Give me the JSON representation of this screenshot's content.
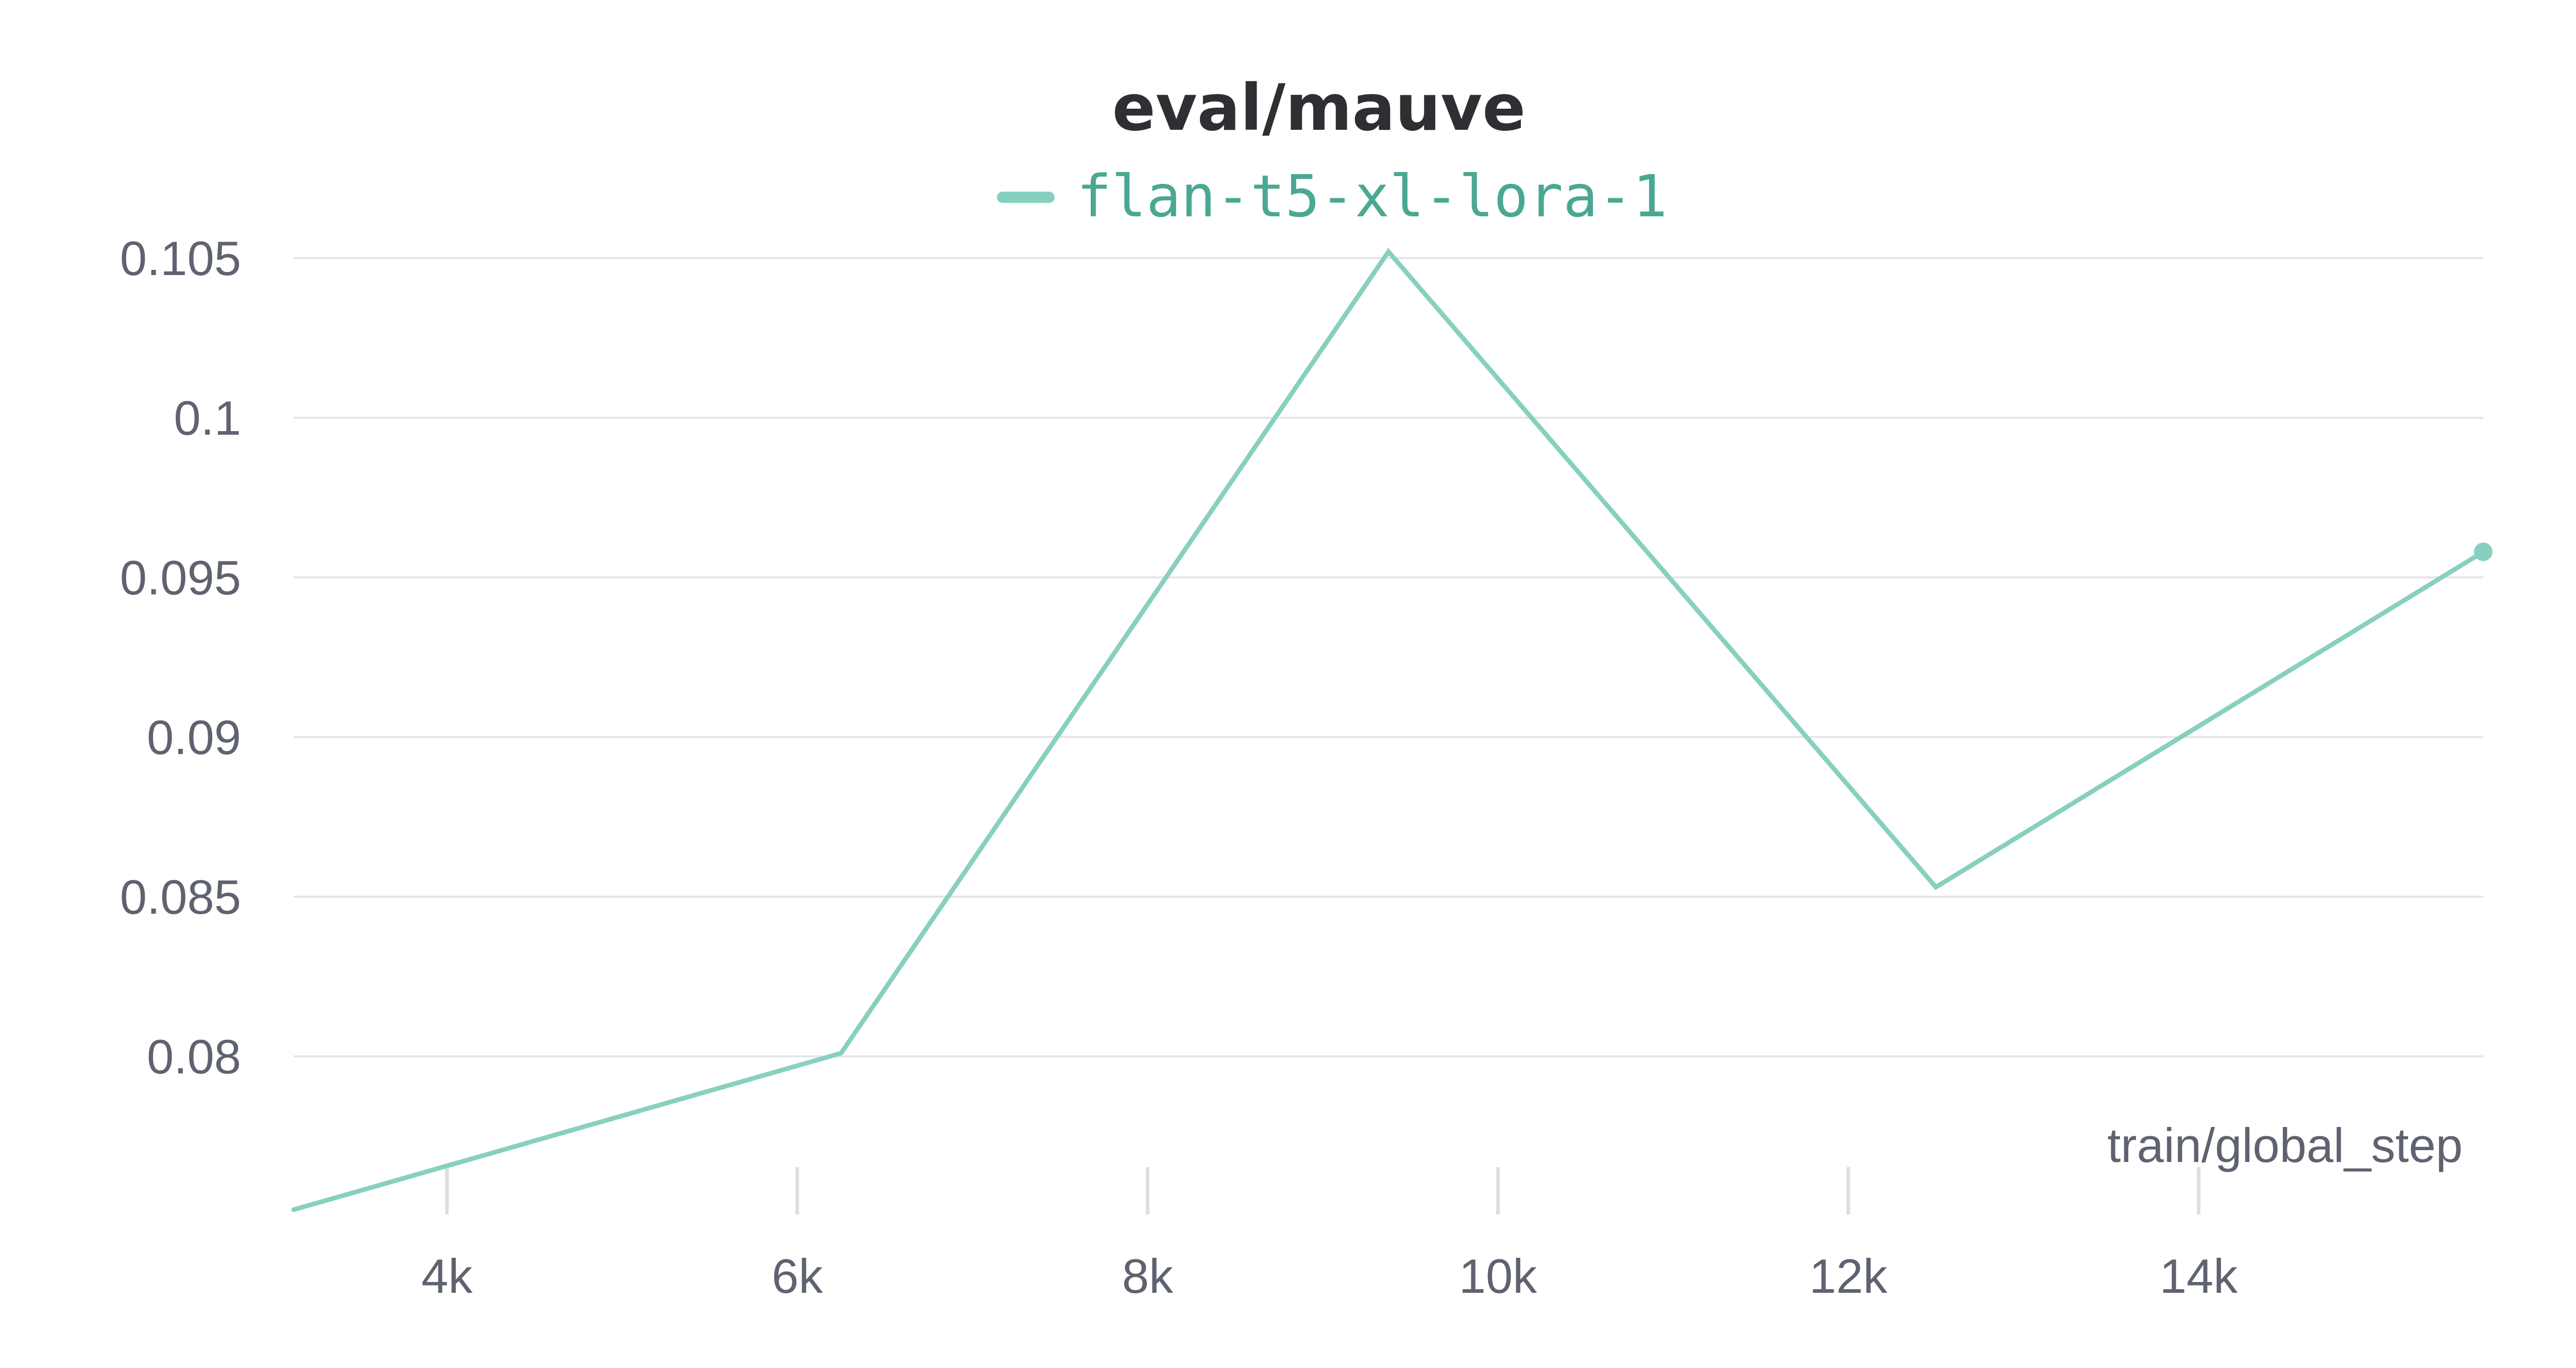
{
  "chart_data": {
    "type": "line",
    "title": "eval/mauve",
    "xlabel": "train/global_step",
    "ylabel": "",
    "xlim": [
      3125,
      15625
    ],
    "ylim": [
      0.0755,
      0.1055
    ],
    "x_ticks": [
      4000,
      6000,
      8000,
      10000,
      12000,
      14000
    ],
    "x_tick_labels": [
      "4k",
      "6k",
      "8k",
      "10k",
      "12k",
      "14k"
    ],
    "y_ticks": [
      0.08,
      0.085,
      0.09,
      0.095,
      0.1,
      0.105
    ],
    "y_tick_labels": [
      "0.08",
      "0.085",
      "0.09",
      "0.095",
      "0.1",
      "0.105"
    ],
    "grid": true,
    "legend_position": "top-center",
    "series": [
      {
        "name": "flan-t5-xl-lora-1",
        "color": "#87d0bf",
        "x": [
          3125,
          6250,
          9375,
          12500,
          15625
        ],
        "y": [
          0.0752,
          0.0801,
          0.1052,
          0.0853,
          0.0958
        ]
      }
    ]
  }
}
